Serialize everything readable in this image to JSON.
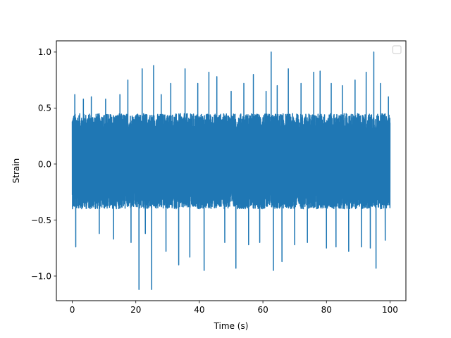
{
  "chart_data": {
    "type": "line",
    "title": "",
    "xlabel": "Time (s)",
    "ylabel": "Strain",
    "xlim": [
      -5,
      105
    ],
    "ylim": [
      -1.22,
      1.1
    ],
    "x_ticks": [
      {
        "value": 0,
        "label": "0"
      },
      {
        "value": 20,
        "label": "20"
      },
      {
        "value": 40,
        "label": "40"
      },
      {
        "value": 60,
        "label": "60"
      },
      {
        "value": 80,
        "label": "80"
      },
      {
        "value": 100,
        "label": "100"
      }
    ],
    "y_ticks": [
      {
        "value": -1.0,
        "label": "−1.0"
      },
      {
        "value": -0.5,
        "label": "−0.5"
      },
      {
        "value": 0.0,
        "label": "0.0"
      },
      {
        "value": 0.5,
        "label": "0.5"
      },
      {
        "value": 1.0,
        "label": "1.0"
      }
    ],
    "grid": false,
    "legend": {
      "placement": "top-right",
      "entries": []
    },
    "series": [
      {
        "color": "#1f77b4",
        "x_range": [
          0,
          100
        ],
        "typical_envelope": [
          -0.4,
          0.45
        ],
        "peaks": [
          {
            "x": 0.8,
            "y": 0.62
          },
          {
            "x": 1.1,
            "y": -0.74
          },
          {
            "x": 3.5,
            "y": 0.58
          },
          {
            "x": 6.0,
            "y": 0.6
          },
          {
            "x": 8.5,
            "y": -0.62
          },
          {
            "x": 10.5,
            "y": 0.58
          },
          {
            "x": 13.0,
            "y": -0.67
          },
          {
            "x": 15.0,
            "y": 0.62
          },
          {
            "x": 17.5,
            "y": 0.75
          },
          {
            "x": 18.5,
            "y": -0.7
          },
          {
            "x": 21.0,
            "y": -1.12
          },
          {
            "x": 22.0,
            "y": 0.85
          },
          {
            "x": 23.0,
            "y": -0.62
          },
          {
            "x": 25.0,
            "y": -1.12
          },
          {
            "x": 25.6,
            "y": 0.88
          },
          {
            "x": 28.0,
            "y": 0.62
          },
          {
            "x": 29.5,
            "y": -0.78
          },
          {
            "x": 31.0,
            "y": 0.72
          },
          {
            "x": 33.5,
            "y": -0.9
          },
          {
            "x": 35.5,
            "y": 0.85
          },
          {
            "x": 37.0,
            "y": -0.83
          },
          {
            "x": 39.5,
            "y": 0.72
          },
          {
            "x": 41.5,
            "y": -0.95
          },
          {
            "x": 43.0,
            "y": 0.82
          },
          {
            "x": 45.5,
            "y": 0.78
          },
          {
            "x": 48.0,
            "y": -0.7
          },
          {
            "x": 50.0,
            "y": 0.65
          },
          {
            "x": 51.5,
            "y": -0.93
          },
          {
            "x": 54.0,
            "y": 0.72
          },
          {
            "x": 55.5,
            "y": -0.72
          },
          {
            "x": 57.0,
            "y": 0.8
          },
          {
            "x": 59.0,
            "y": -0.7
          },
          {
            "x": 61.0,
            "y": 0.65
          },
          {
            "x": 62.6,
            "y": 1.0
          },
          {
            "x": 63.3,
            "y": -0.95
          },
          {
            "x": 64.5,
            "y": 0.7
          },
          {
            "x": 66.0,
            "y": -0.87
          },
          {
            "x": 68.0,
            "y": 0.85
          },
          {
            "x": 70.0,
            "y": -0.72
          },
          {
            "x": 72.0,
            "y": 0.72
          },
          {
            "x": 74.0,
            "y": -0.7
          },
          {
            "x": 76.0,
            "y": 0.82
          },
          {
            "x": 78.0,
            "y": 0.83
          },
          {
            "x": 80.0,
            "y": -0.75
          },
          {
            "x": 81.5,
            "y": 0.72
          },
          {
            "x": 83.0,
            "y": -0.74
          },
          {
            "x": 85.0,
            "y": 0.7
          },
          {
            "x": 87.0,
            "y": -0.78
          },
          {
            "x": 89.0,
            "y": 0.75
          },
          {
            "x": 91.0,
            "y": -0.74
          },
          {
            "x": 92.5,
            "y": 0.82
          },
          {
            "x": 93.8,
            "y": -0.75
          },
          {
            "x": 94.9,
            "y": 1.0
          },
          {
            "x": 95.6,
            "y": -0.93
          },
          {
            "x": 97.0,
            "y": 0.72
          },
          {
            "x": 98.5,
            "y": -0.68
          },
          {
            "x": 99.5,
            "y": 0.6
          }
        ]
      }
    ]
  }
}
